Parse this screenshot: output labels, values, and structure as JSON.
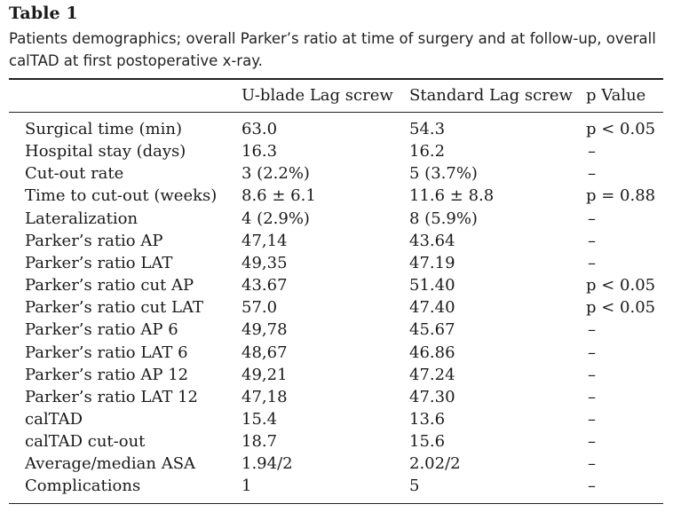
{
  "table_label": "Table 1",
  "caption": "Patients demographics; overall Parker’s ratio at time of surgery and at follow-up, overall calTAD at first postoperative x-ray.",
  "header": {
    "col1": "",
    "col2": "U-blade Lag screw",
    "col3": "Standard Lag screw",
    "col4": "p Value"
  },
  "rows": [
    {
      "label": "Surgical time (min)",
      "ublade": "63.0",
      "standard": "54.3",
      "p": "p < 0.05"
    },
    {
      "label": "Hospital stay (days)",
      "ublade": "16.3",
      "standard": "16.2",
      "p": "–"
    },
    {
      "label": "Cut-out rate",
      "ublade": "3 (2.2%)",
      "standard": "5 (3.7%)",
      "p": "–"
    },
    {
      "label": "Time to cut-out (weeks)",
      "ublade": "8.6 ± 6.1",
      "standard": "11.6 ± 8.8",
      "p": "p = 0.88"
    },
    {
      "label": "Lateralization",
      "ublade": "4 (2.9%)",
      "standard": "8 (5.9%)",
      "p": "–"
    },
    {
      "label": "Parker’s ratio AP",
      "ublade": "47,14",
      "standard": "43.64",
      "p": "–"
    },
    {
      "label": "Parker’s ratio LAT",
      "ublade": "49,35",
      "standard": "47.19",
      "p": "–"
    },
    {
      "label": "Parker’s ratio cut AP",
      "ublade": "43.67",
      "standard": "51.40",
      "p": "p < 0.05"
    },
    {
      "label": "Parker’s ratio cut LAT",
      "ublade": "57.0",
      "standard": "47.40",
      "p": "p < 0.05"
    },
    {
      "label": "Parker’s ratio AP 6",
      "ublade": "49,78",
      "standard": "45.67",
      "p": "–"
    },
    {
      "label": "Parker’s ratio LAT 6",
      "ublade": "48,67",
      "standard": "46.86",
      "p": "–"
    },
    {
      "label": "Parker’s ratio AP 12",
      "ublade": "49,21",
      "standard": "47.24",
      "p": "–"
    },
    {
      "label": "Parker’s ratio LAT 12",
      "ublade": "47,18",
      "standard": "47.30",
      "p": "–"
    },
    {
      "label": "calTAD",
      "ublade": "15.4",
      "standard": "13.6",
      "p": "–"
    },
    {
      "label": "calTAD cut-out",
      "ublade": "18.7",
      "standard": "15.6",
      "p": "–"
    },
    {
      "label": "Average/median ASA",
      "ublade": "1.94/2",
      "standard": "2.02/2",
      "p": "–"
    },
    {
      "label": "Complications",
      "ublade": "1",
      "standard": "5",
      "p": "–"
    }
  ]
}
